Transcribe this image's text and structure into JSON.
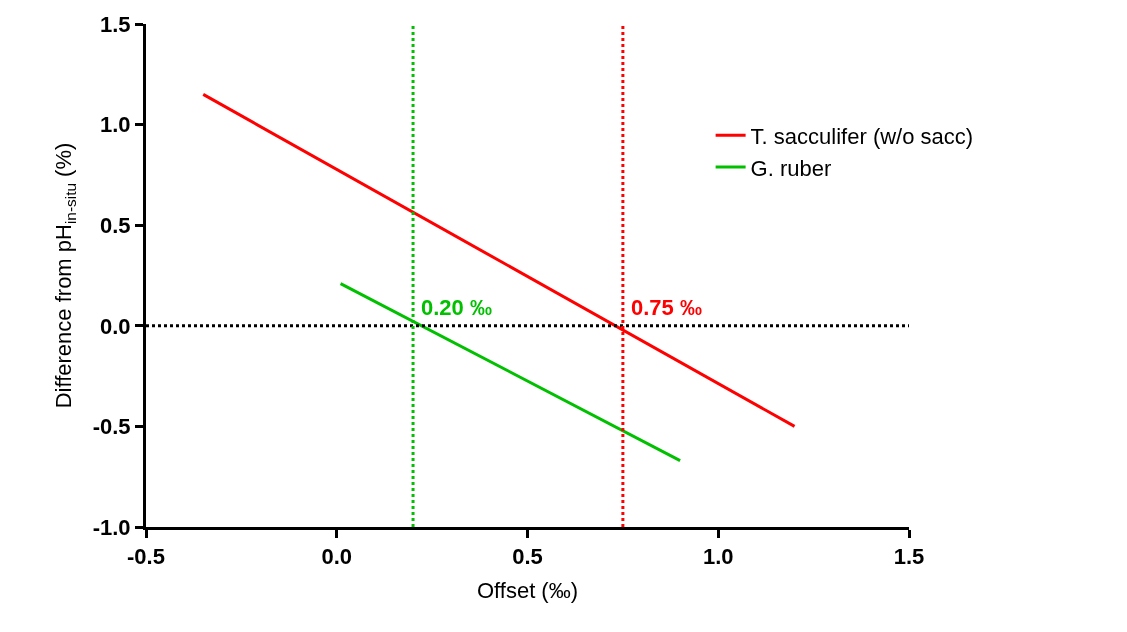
{
  "chart_data": {
    "type": "line",
    "xlabel": "Offset (‰)",
    "ylabel": "Difference from pH$_{in-situ}$ (%)",
    "series": [
      {
        "name": "T. sacculifer (w/o sacc)",
        "color": "#ff0000",
        "x": [
          -0.35,
          1.2
        ],
        "values": [
          1.15,
          -0.5
        ]
      },
      {
        "name": "G. ruber",
        "color": "#00c000",
        "x": [
          0.01,
          0.9
        ],
        "values": [
          0.21,
          -0.67
        ]
      }
    ],
    "xlim": [
      -0.5,
      1.5
    ],
    "xticks": [
      {
        "value": -0.5,
        "label": "-0.5"
      },
      {
        "value": 0,
        "label": "0.0"
      },
      {
        "value": 0.5,
        "label": "0.5"
      },
      {
        "value": 1,
        "label": "1.0"
      },
      {
        "value": 1.5,
        "label": "1.5"
      }
    ],
    "ylim": [
      -1.0,
      1.5
    ],
    "yticks": [
      {
        "value": -1,
        "label": "-1.0"
      },
      {
        "value": -0.5,
        "label": "-0.5"
      },
      {
        "value": 0,
        "label": "0.0"
      },
      {
        "value": 0.5,
        "label": "0.5"
      },
      {
        "value": 1,
        "label": "1.0"
      },
      {
        "value": 1.5,
        "label": "1.5"
      }
    ],
    "ref_lines": [
      {
        "axis": "y",
        "value": 0,
        "color": "#000000",
        "line_style": "dotted"
      },
      {
        "axis": "x",
        "value": 0.2,
        "label": "0.20 ‰",
        "color": "#00c000",
        "line_style": "dotted"
      },
      {
        "axis": "x",
        "value": 0.75,
        "label": "0.75 ‰",
        "color": "#ff0000",
        "line_style": "dotted"
      }
    ],
    "legend": "right",
    "marker": "none",
    "line_style": "solid"
  }
}
